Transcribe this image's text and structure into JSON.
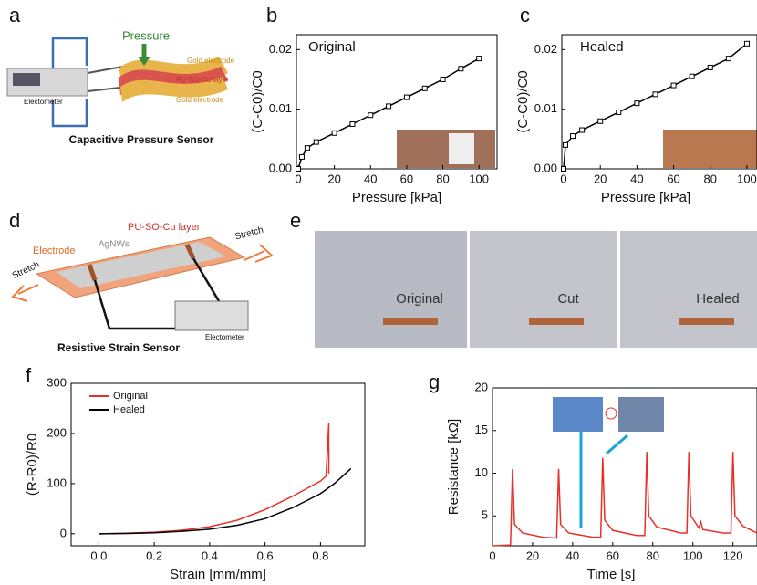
{
  "panel_labels": [
    "a",
    "b",
    "c",
    "d",
    "e",
    "f",
    "g"
  ],
  "diagram_a": {
    "pressure": "Pressure",
    "gold_top": "Gold electrode",
    "layer": "PU-SO-Cu layer",
    "gold_bottom": "Gold electrode",
    "meter": "Electometer",
    "caption": "Capacitive Pressure Sensor"
  },
  "diagram_d": {
    "stretch_right": "Stretch",
    "stretch_left": "Stretch",
    "layer": "PU-SO-Cu layer",
    "electrode": "Electrode",
    "wires": "AgNWs",
    "meter": "Electometer",
    "caption": "Resistive Strain Sensor"
  },
  "photos_e": [
    "Original",
    "Cut",
    "Healed"
  ],
  "chart_data": [
    {
      "type": "line",
      "annotation": "Original",
      "x_label": "Pressure [kPa]",
      "y_label": "(C-C0)/C0",
      "x": [
        0,
        2,
        5,
        10,
        20,
        30,
        40,
        50,
        60,
        70,
        80,
        90,
        100
      ],
      "series": [
        {
          "color": "#000000",
          "marker": "square",
          "values": [
            0,
            0.002,
            0.0035,
            0.0045,
            0.006,
            0.0075,
            0.009,
            0.0105,
            0.012,
            0.0135,
            0.015,
            0.0168,
            0.0185
          ]
        }
      ],
      "xlim": [
        -1,
        110
      ],
      "ylim": [
        0,
        0.0225
      ],
      "xticks": [
        0,
        20,
        40,
        60,
        80,
        100
      ],
      "yticks": [
        {
          "value": 0,
          "label": "0.00"
        },
        {
          "value": 0.01,
          "label": "0.01"
        },
        {
          "value": 0.02,
          "label": "0.02"
        }
      ]
    },
    {
      "type": "line",
      "annotation": "Healed",
      "x_label": "Pressure [kPa]",
      "y_label": "(C-C0)/C0",
      "x": [
        0,
        1,
        5,
        10,
        20,
        30,
        40,
        50,
        60,
        70,
        80,
        90,
        100
      ],
      "series": [
        {
          "color": "#000000",
          "marker": "square",
          "values": [
            0,
            0.004,
            0.0055,
            0.0065,
            0.008,
            0.0095,
            0.011,
            0.0125,
            0.014,
            0.0155,
            0.017,
            0.0185,
            0.021
          ]
        }
      ],
      "xlim": [
        -1,
        105.5
      ],
      "ylim": [
        0,
        0.0225
      ],
      "xticks": [
        0,
        20,
        40,
        60,
        80,
        100
      ],
      "yticks": [
        {
          "value": 0,
          "label": "0.00"
        },
        {
          "value": 0.01,
          "label": "0.01"
        },
        {
          "value": 0.02,
          "label": "0.02"
        }
      ]
    },
    {
      "type": "line",
      "x_label": "Strain [mm/mm]",
      "y_label": "(R-R0)/R0",
      "legend": "upper left",
      "series": [
        {
          "name": "Original",
          "color": "#e8302a",
          "x": [
            0,
            0.1,
            0.2,
            0.3,
            0.4,
            0.5,
            0.6,
            0.7,
            0.8,
            0.82,
            0.83,
            0.83
          ],
          "values": [
            0,
            1,
            3,
            7,
            14,
            27,
            48,
            75,
            105,
            115,
            220,
            120
          ]
        },
        {
          "name": "Healed",
          "color": "#000000",
          "x": [
            0,
            0.1,
            0.2,
            0.3,
            0.4,
            0.5,
            0.6,
            0.7,
            0.8,
            0.85,
            0.9,
            0.91
          ],
          "values": [
            0,
            0.5,
            2,
            5,
            9,
            17,
            30,
            52,
            80,
            100,
            125,
            130
          ]
        }
      ],
      "xlim": [
        -0.1,
        0.96
      ],
      "ylim": [
        -24,
        300
      ],
      "xticks": [
        {
          "value": 0,
          "label": "0.0"
        },
        {
          "value": 0.2,
          "label": "0.2"
        },
        {
          "value": 0.4,
          "label": "0.4"
        },
        {
          "value": 0.6,
          "label": "0.6"
        },
        {
          "value": 0.8,
          "label": "0.8"
        }
      ],
      "yticks": [
        0,
        100,
        200,
        300
      ]
    },
    {
      "type": "line",
      "x_label": "Time [s]",
      "y_label": "Resistance [kΩ]",
      "x": [
        0,
        9,
        10,
        11,
        15,
        25,
        32,
        33,
        34,
        38,
        50,
        54,
        55,
        56,
        60,
        72,
        76,
        77,
        78,
        82,
        94,
        97,
        98,
        99,
        103,
        104,
        105,
        115,
        119,
        120,
        121,
        125,
        132
      ],
      "series": [
        {
          "color": "#e8302a",
          "values": [
            1.5,
            1.6,
            10.5,
            4,
            3,
            2.5,
            2.4,
            10.5,
            4,
            3,
            2.5,
            2.5,
            11.8,
            4.5,
            3.3,
            2.7,
            2.7,
            12.5,
            5,
            3.7,
            3,
            3,
            12.5,
            5,
            3.6,
            4.3,
            3.4,
            3,
            3,
            12.5,
            5,
            3.8,
            3
          ]
        }
      ],
      "xlim": [
        0,
        132
      ],
      "ylim": [
        1.5,
        20
      ],
      "xticks": [
        0,
        20,
        40,
        60,
        80,
        100,
        120
      ],
      "yticks": [
        5,
        10,
        15,
        20
      ]
    }
  ]
}
